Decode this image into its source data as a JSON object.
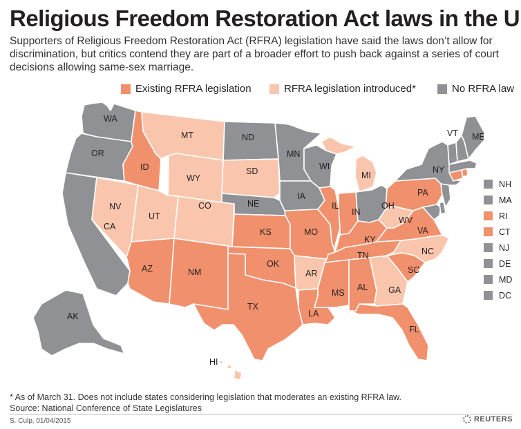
{
  "title": "Religious Freedom Restoration Act laws in the U.S.",
  "subtitle": "Supporters of Religious Freedom Restoration Act (RFRA) legislation have said the laws don’t allow for discrimination, but critics contend they are part of a broader effort to push back against a series of court decisions allowing same-sex marriage.",
  "colors": {
    "existing": "#f1906c",
    "introduced": "#f9c6ad",
    "none": "#8f9195",
    "border": "#ffffff"
  },
  "legend": [
    {
      "label": "Existing RFRA legislation",
      "category": "existing"
    },
    {
      "label": "RFRA legislation introduced*",
      "category": "introduced"
    },
    {
      "label": "No RFRA law",
      "category": "none"
    }
  ],
  "states": {
    "WA": "none",
    "OR": "none",
    "CA": "none",
    "AK": "none",
    "ND": "none",
    "MN": "none",
    "WI": "none",
    "NE": "none",
    "IA": "none",
    "OH": "none",
    "NY": "none",
    "VT": "none",
    "ME": "none",
    "NH": "none",
    "MA": "none",
    "NJ": "none",
    "DE": "none",
    "MD": "none",
    "DC": "none",
    "ID": "existing",
    "NM": "existing",
    "AZ": "existing",
    "TX": "existing",
    "OK": "existing",
    "KS": "existing",
    "MO": "existing",
    "LA": "existing",
    "MS": "existing",
    "AL": "existing",
    "TN": "existing",
    "KY": "existing",
    "IL": "existing",
    "IN": "existing",
    "FL": "existing",
    "SC": "existing",
    "VA": "existing",
    "PA": "existing",
    "CT": "existing",
    "RI": "existing",
    "MT": "introduced",
    "WY": "introduced",
    "NV": "introduced",
    "UT": "introduced",
    "CO": "introduced",
    "SD": "introduced",
    "MI": "introduced",
    "AR": "introduced",
    "GA": "introduced",
    "NC": "introduced",
    "WV": "introduced",
    "HI": "introduced"
  },
  "small_states": [
    {
      "label": "NH",
      "category": "none"
    },
    {
      "label": "MA",
      "category": "none"
    },
    {
      "label": "RI",
      "category": "existing"
    },
    {
      "label": "CT",
      "category": "existing"
    },
    {
      "label": "NJ",
      "category": "none"
    },
    {
      "label": "DE",
      "category": "none"
    },
    {
      "label": "MD",
      "category": "none"
    },
    {
      "label": "DC",
      "category": "none"
    }
  ],
  "footnote": "* As of March 31. Does not include states considering legislation that moderates an existing RFRA law.",
  "source": "Source: National Conference of State Legislatures",
  "credit": "S. Culp, 01/04/2015",
  "brand": "REUTERS"
}
